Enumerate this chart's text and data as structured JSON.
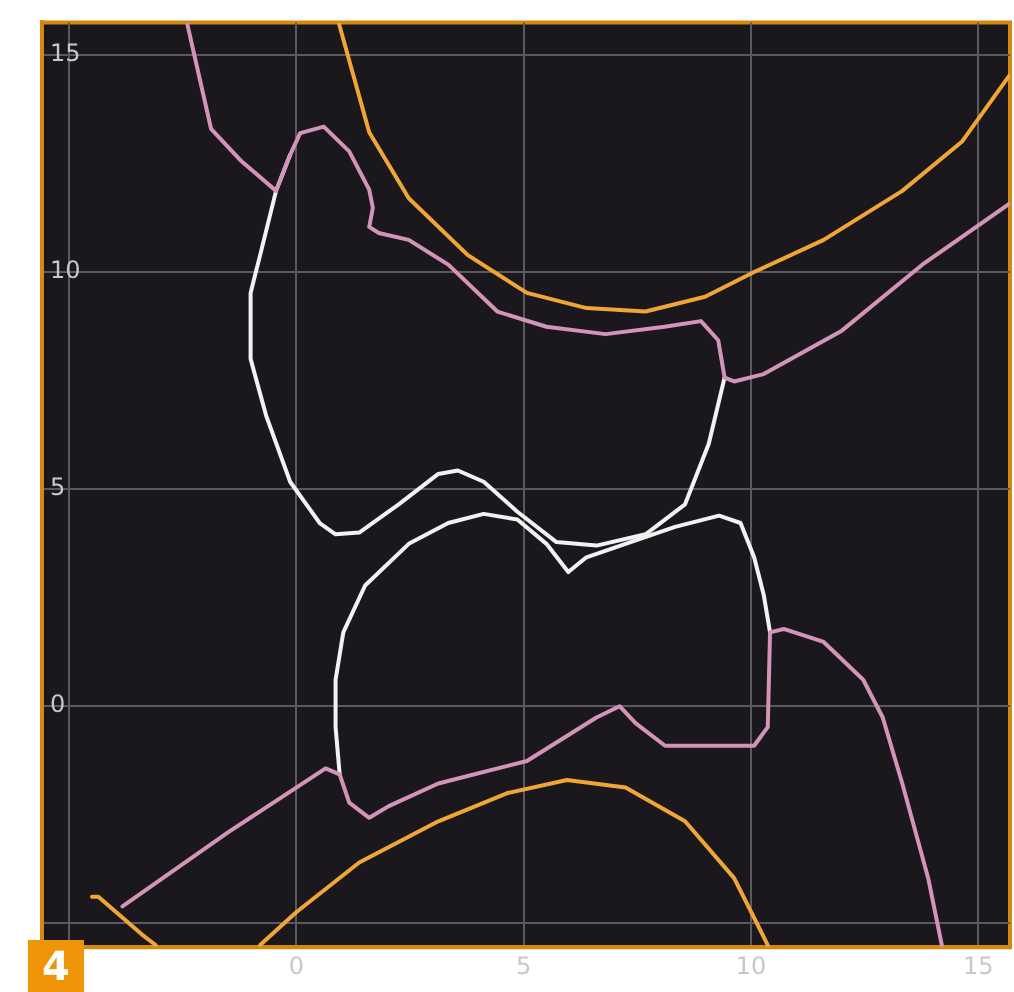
{
  "chart_data": {
    "type": "line",
    "annotations": [
      "4"
    ],
    "xlim": [
      -5.6,
      15.7
    ],
    "ylim": [
      -5.55,
      15.75
    ],
    "xticks": [
      {
        "value": -5,
        "label": null
      },
      0,
      5,
      10,
      15
    ],
    "yticks": [
      {
        "value": -5,
        "label": null
      },
      0,
      5,
      10,
      15
    ],
    "grid": true,
    "legend": false,
    "marker": "none",
    "line_style": "solid",
    "series": [
      {
        "color": "#f0a636",
        "x": [
          0.94,
          1.6,
          2.47,
          3.77,
          5.07,
          6.38,
          7.68,
          8.99,
          10.07,
          11.6,
          13.33,
          14.64,
          15.68
        ],
        "values": [
          15.7,
          13.22,
          11.7,
          10.39,
          9.52,
          9.17,
          9.09,
          9.43,
          10.0,
          10.74,
          11.87,
          13.0,
          14.52
        ]
      },
      {
        "color": "#f0a636",
        "x": [
          -4.5,
          -4.36,
          -3.4,
          -3.1,
          -2,
          -0.8,
          0,
          1.38,
          3.12,
          4.64,
          5.95,
          7.24,
          8.55,
          9.63,
          10.37
        ],
        "values": [
          -4.39,
          -4.39,
          -5.26,
          -5.5,
          null,
          -5.5,
          -4.74,
          -3.6,
          -2.65,
          -2.0,
          -1.7,
          -1.87,
          -2.65,
          -3.96,
          -5.5
        ]
      },
      {
        "color": "#d493b8",
        "x": [
          -2.4,
          -1.88,
          -1.23,
          -0.45,
          -0.14,
          0.08,
          0.6,
          1.16,
          1.6,
          1.68,
          1.6,
          1.81,
          2.47,
          3.34,
          4.42,
          5.5,
          6.8,
          8.1,
          8.9,
          9.28,
          9.42,
          9.63,
          10.28,
          12.0,
          13.77,
          15.68
        ],
        "values": [
          15.7,
          13.3,
          12.57,
          11.87,
          12.7,
          13.2,
          13.35,
          12.78,
          11.9,
          11.48,
          11.04,
          10.9,
          10.74,
          10.17,
          9.09,
          8.74,
          8.57,
          8.74,
          8.87,
          8.43,
          7.57,
          7.48,
          7.65,
          8.65,
          10.17,
          11.57
        ]
      },
      {
        "color": "#d493b8",
        "x": [
          -3.83,
          -1.5,
          0.64,
          0.95,
          1.16,
          1.6,
          2.03,
          3.12,
          5.07,
          6.6,
          7.11,
          7.46,
          8.11,
          10.07,
          10.37,
          10.42,
          10.72,
          11.6,
          12.47,
          12.9,
          13.33,
          13.9,
          14.2
        ],
        "values": [
          -4.61,
          -2.9,
          -1.43,
          -1.57,
          -2.22,
          -2.57,
          -2.3,
          -1.78,
          -1.26,
          -0.26,
          0,
          -0.39,
          -0.91,
          -0.91,
          -0.48,
          1.7,
          1.78,
          1.48,
          0.61,
          -0.26,
          -1.78,
          -3.96,
          -5.5
        ]
      },
      {
        "color": "#f2f2f2",
        "x": [
          -0.14,
          -0.45,
          -0.8,
          -1.01,
          -1.01,
          -0.67,
          -0.14,
          0.51,
          0.86,
          1.38,
          2.25,
          3.12,
          3.55,
          4.12,
          4.86,
          5.72,
          6.6,
          7.68,
          8.55,
          9.07,
          9.42
        ],
        "values": [
          12.7,
          11.87,
          10.39,
          9.52,
          8.0,
          6.7,
          5.17,
          4.22,
          3.96,
          4.0,
          4.65,
          5.35,
          5.43,
          5.17,
          4.48,
          3.78,
          3.7,
          3.96,
          4.65,
          6.04,
          7.57
        ]
      },
      {
        "color": "#f2f2f2",
        "x": [
          0.95,
          0.86,
          0.86,
          1.03,
          1.51,
          2.47,
          3.34,
          4.12,
          4.86,
          5.5,
          5.98,
          6.38,
          7.24,
          8.33,
          9.3,
          9.77,
          10.07,
          10.28,
          10.42
        ],
        "values": [
          -1.57,
          -0.48,
          0.61,
          1.7,
          2.78,
          3.74,
          4.22,
          4.43,
          4.3,
          3.74,
          3.09,
          3.43,
          3.74,
          4.13,
          4.39,
          4.22,
          3.43,
          2.57,
          1.7
        ]
      }
    ]
  }
}
